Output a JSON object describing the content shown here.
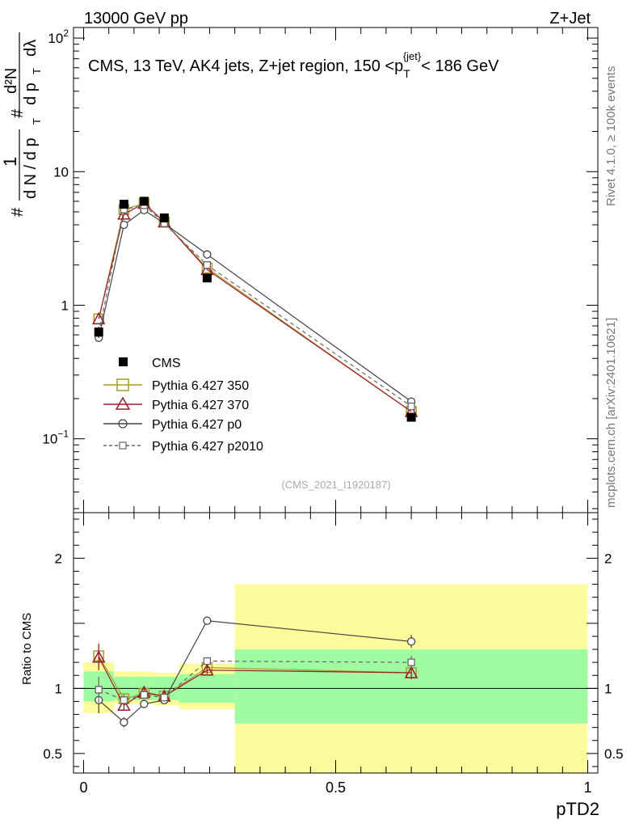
{
  "header": {
    "left": "13000 GeV pp",
    "right": "Z+Jet"
  },
  "side_labels": {
    "rivet": "Rivet 4.1.0, ≥ 100k events",
    "mcplots": "mcplots.cern.ch [arXiv:2401.10621]"
  },
  "main_plot": {
    "title": "CMS, 13 TeV, AK4 jets, Z+jet region, 150 <p_T^{jet}< 186 GeV",
    "title_parts": {
      "a": "CMS, 13 TeV, AK4 jets, Z+jet region, 150 <p",
      "sub": "T",
      "sup": "{jet}",
      "b": "< 186 GeV"
    },
    "ylabel": "1/dN/dp_T d²N/dp_T dλ",
    "ylabel_parts": {
      "hash1": "#",
      "one": "1",
      "dn": "d N / d p",
      "t": "T",
      "hash2": "#",
      "d2n": "d²N",
      "dpt": "d p",
      "dlam": "dλ"
    },
    "analysis_id": "(CMS_2021_I1920187)",
    "y_ticks": [
      {
        "v": 0.1,
        "base": "10",
        "exp": "−1"
      },
      {
        "v": 1,
        "label": "1"
      },
      {
        "v": 10,
        "label": "10"
      },
      {
        "v": 100,
        "base": "10",
        "exp": "2"
      }
    ],
    "ylim": [
      0.028,
      120
    ],
    "legend": {
      "cms": "CMS",
      "p350": "Pythia 6.427 350",
      "p370": "Pythia 6.427 370",
      "p0": "Pythia 6.427 p0",
      "p2010": "Pythia 6.427 p2010"
    }
  },
  "ratio_plot": {
    "ylabel": "Ratio to CMS",
    "ylim": [
      0.35,
      2.35
    ],
    "y_ticks": [
      {
        "v": 0.5,
        "label": "0.5"
      },
      {
        "v": 1,
        "label": "1"
      },
      {
        "v": 2,
        "label": "2"
      }
    ]
  },
  "x_axis": {
    "label": "pTD2",
    "xlim": [
      -0.02,
      1.02
    ],
    "ticks": [
      {
        "v": 0,
        "label": "0"
      },
      {
        "v": 0.5,
        "label": "0.5"
      },
      {
        "v": 1,
        "label": "1"
      }
    ]
  },
  "chart_data": {
    "type": "line",
    "title": "CMS, 13 TeV, AK4 jets, Z+jet region, 150 <p_T^{jet}< 186 GeV",
    "xlabel": "pTD2",
    "ylabel": "1/dN/dp_T d²N/dp_T dλ",
    "yscale": "log",
    "bins": [
      [
        0,
        0.06
      ],
      [
        0.06,
        0.1
      ],
      [
        0.1,
        0.14
      ],
      [
        0.14,
        0.19
      ],
      [
        0.19,
        0.3
      ],
      [
        0.3,
        1.0
      ]
    ],
    "x": [
      0.03,
      0.08,
      0.12,
      0.16,
      0.245,
      0.65
    ],
    "data": {
      "name": "CMS",
      "values": [
        0.63,
        5.7,
        6.0,
        4.5,
        1.6,
        0.145
      ],
      "errors": [
        0.06,
        0.2,
        0.2,
        0.15,
        0.08,
        0.01
      ]
    },
    "series": [
      {
        "name": "Pythia 6.427 350",
        "color": "#a89c2c",
        "marker": "square",
        "values": [
          0.79,
          5.2,
          5.8,
          4.2,
          1.9,
          0.16
        ],
        "ratio": [
          1.25,
          0.92,
          0.96,
          0.94,
          1.16,
          1.12
        ],
        "ratio_err": [
          0.1,
          0.04,
          0.03,
          0.03,
          0.03,
          0.05
        ]
      },
      {
        "name": "Pythia 6.427 370",
        "color": "#9a1c2c",
        "marker": "triangle",
        "values": [
          0.79,
          4.8,
          5.8,
          4.2,
          1.85,
          0.16
        ],
        "ratio": [
          1.24,
          0.87,
          0.97,
          0.94,
          1.14,
          1.12
        ],
        "ratio_err": [
          0.1,
          0.04,
          0.03,
          0.03,
          0.03,
          0.05
        ]
      },
      {
        "name": "Pythia 6.427 p0",
        "color": "#444444",
        "marker": "circle",
        "values": [
          0.57,
          4.0,
          5.15,
          4.1,
          2.4,
          0.19
        ],
        "ratio": [
          0.91,
          0.74,
          0.88,
          0.91,
          1.52,
          1.36
        ],
        "ratio_err": [
          0.1,
          0.04,
          0.03,
          0.03,
          0.03,
          0.05
        ]
      },
      {
        "name": "Pythia 6.427 p2010",
        "color": "#666666",
        "marker": "square-small",
        "dashed": true,
        "values": [
          0.62,
          5.2,
          5.6,
          4.1,
          2.0,
          0.175
        ],
        "ratio": [
          0.99,
          0.91,
          0.95,
          0.93,
          1.21,
          1.2
        ],
        "ratio_err": [
          0.1,
          0.04,
          0.03,
          0.03,
          0.03,
          0.05
        ]
      }
    ],
    "uncertainty_bands": {
      "inner": [
        [
          0.9,
          1.13
        ],
        [
          0.91,
          1.09
        ],
        [
          0.91,
          1.09
        ],
        [
          0.91,
          1.09
        ],
        [
          0.89,
          1.11
        ],
        [
          0.73,
          1.3
        ]
      ],
      "outer": [
        [
          0.81,
          1.2
        ],
        [
          0.88,
          1.13
        ],
        [
          0.88,
          1.13
        ],
        [
          0.87,
          1.12
        ],
        [
          0.84,
          1.19
        ],
        [
          0.35,
          1.8
        ]
      ],
      "inner_color": "#a0fca0",
      "outer_color": "#fcfc9c"
    }
  }
}
